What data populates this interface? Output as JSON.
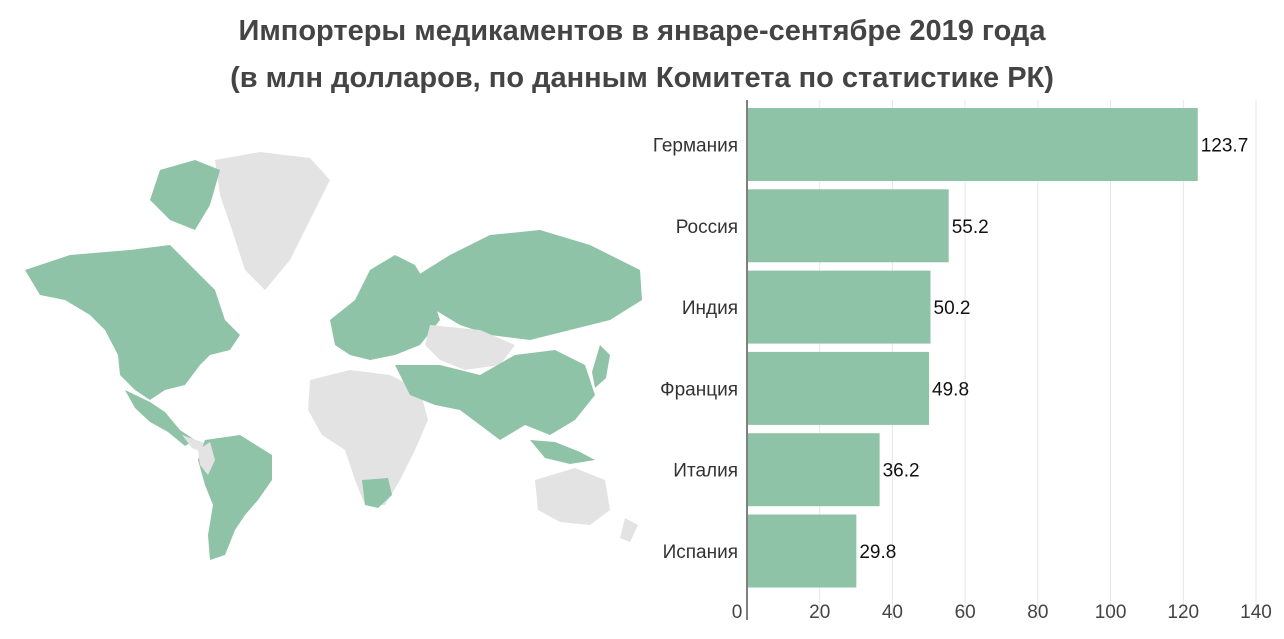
{
  "title": {
    "line1": "Импортеры медикаментов в январе-сентябре 2019 года",
    "line2": "(в млн долларов, по данным Комитета по статистике РК)"
  },
  "colors": {
    "bar": "#8fc3a7",
    "highlight_country": "#8fc3a7",
    "other_country": "#e3e3e3",
    "grid": "#e6e6e6",
    "axis": "#555555",
    "title": "#444444"
  },
  "map": {
    "type": "world-choropleth",
    "highlighted": [
      "Germany",
      "Russia",
      "India",
      "France",
      "Italy",
      "Spain",
      "USA",
      "Canada",
      "Brazil",
      "China"
    ]
  },
  "chart_data": {
    "type": "bar",
    "orientation": "horizontal",
    "title": "Импортеры медикаментов в январе-сентябре 2019 года (в млн долларов, по данным Комитета по статистике РК)",
    "categories": [
      "Германия",
      "Россия",
      "Индия",
      "Франция",
      "Италия",
      "Испания"
    ],
    "values": [
      123.7,
      55.2,
      50.2,
      49.8,
      36.2,
      29.8
    ],
    "value_labels": [
      "123.7",
      "55.2",
      "50.2",
      "49.8",
      "36.2",
      "29.8"
    ],
    "xlim": [
      0,
      140
    ],
    "xticks": [
      0,
      20,
      40,
      60,
      80,
      100,
      120,
      140
    ],
    "xlabel": "",
    "ylabel": "",
    "grid": true,
    "legend": "none"
  }
}
